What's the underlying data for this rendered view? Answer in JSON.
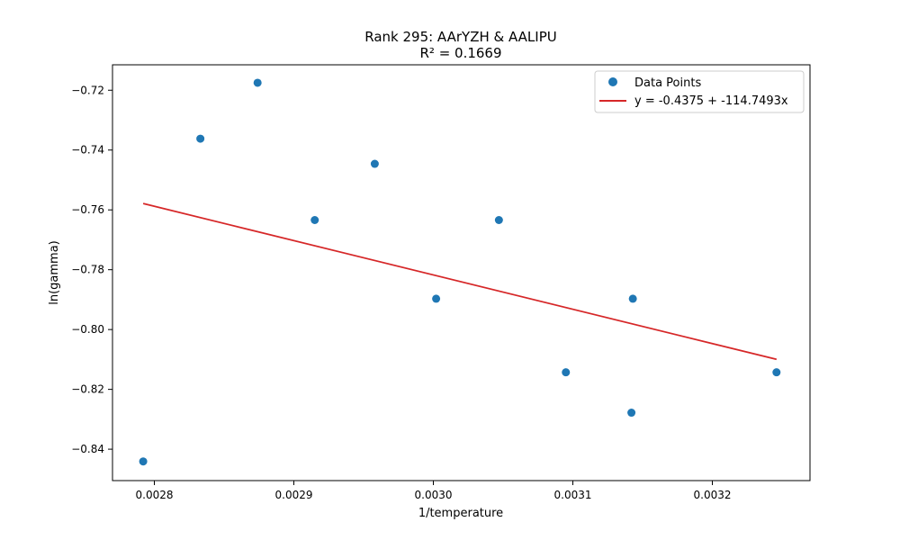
{
  "chart_data": {
    "type": "scatter",
    "title": "Rank 295: AArYZH & AALIPU",
    "subtitle": "R² = 0.1669",
    "xlabel": "1/temperature",
    "ylabel": "ln(gamma)",
    "xlim": [
      0.00277,
      0.00327
    ],
    "ylim": [
      -0.8505,
      -0.7115
    ],
    "grid": false,
    "legend_position": "top-right",
    "x_ticks": [
      {
        "value": 0.0028,
        "label": "0.0028"
      },
      {
        "value": 0.0029,
        "label": "0.0029"
      },
      {
        "value": 0.003,
        "label": "0.0030"
      },
      {
        "value": 0.0031,
        "label": "0.0031"
      },
      {
        "value": 0.0032,
        "label": "0.0032"
      }
    ],
    "y_ticks": [
      {
        "value": -0.72,
        "label": "−0.72"
      },
      {
        "value": -0.74,
        "label": "−0.74"
      },
      {
        "value": -0.76,
        "label": "−0.76"
      },
      {
        "value": -0.78,
        "label": "−0.78"
      },
      {
        "value": -0.8,
        "label": "−0.80"
      },
      {
        "value": -0.82,
        "label": "−0.82"
      },
      {
        "value": -0.84,
        "label": "−0.84"
      }
    ],
    "series": [
      {
        "name": "Data Points",
        "kind": "scatter",
        "color": "#1f77b4",
        "points": [
          {
            "x": 0.002792,
            "y": -0.8441
          },
          {
            "x": 0.002833,
            "y": -0.7362
          },
          {
            "x": 0.002874,
            "y": -0.7175
          },
          {
            "x": 0.002915,
            "y": -0.7634
          },
          {
            "x": 0.002958,
            "y": -0.7446
          },
          {
            "x": 0.003002,
            "y": -0.7897
          },
          {
            "x": 0.003047,
            "y": -0.7634
          },
          {
            "x": 0.003095,
            "y": -0.8143
          },
          {
            "x": 0.003143,
            "y": -0.7897
          },
          {
            "x": 0.003142,
            "y": -0.8278
          },
          {
            "x": 0.003246,
            "y": -0.8143
          }
        ]
      },
      {
        "name": "y = -0.4375 + -114.7493x",
        "kind": "line",
        "color": "#d62728",
        "intercept": -0.4375,
        "slope": -114.7493,
        "x_range": [
          0.002792,
          0.003246
        ]
      }
    ]
  }
}
